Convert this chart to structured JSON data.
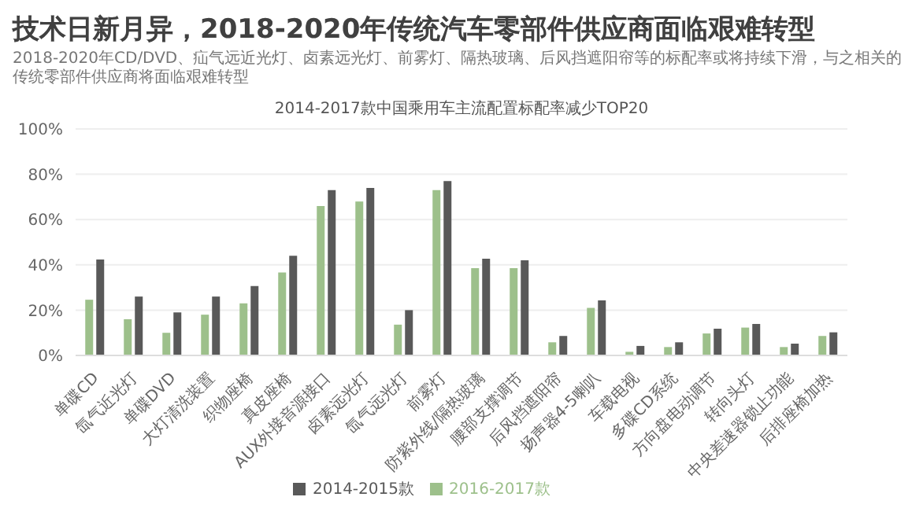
{
  "chart_data": {
    "type": "bar",
    "title": "技术日新月异，2018-2020年传统汽车零部件供应商面临艰难转型",
    "subtitle": "2018-2020年CD/DVD、疝气远近光灯、卤素远光灯、前雾灯、隔热玻璃、后风挡遮阳帘等的标配率或将持续下滑，与之相关的传统零部件供应商将面临艰难转型",
    "annotations": [
      "2014-2017款中国乘用车主流配置标配率减少TOP20"
    ],
    "categories": [
      "单碟CD",
      "氙气近光灯",
      "单碟DVD",
      "大灯清洗装置",
      "织物座椅",
      "真皮座椅",
      "AUX外接音源接口",
      "卤素远光灯",
      "氙气远光灯",
      "前雾灯",
      "防紫外线/隔热玻璃",
      "腰部支撑调节",
      "后风挡遮阳帘",
      "扬声器4-5喇叭",
      "车载电视",
      "多碟CD系统",
      "方向盘电动调节",
      "转向头灯",
      "中央差速器锁止功能",
      "后排座椅加热"
    ],
    "series": [
      {
        "name": "2016-2017款",
        "color": "#9dc08b",
        "values": [
          24.6,
          16,
          10,
          18,
          23,
          36.6,
          66,
          68,
          13.6,
          73,
          38.5,
          38.5,
          5.8,
          21,
          1.6,
          3.7,
          9.7,
          12.3,
          3.7,
          8.6
        ]
      },
      {
        "name": "2014-2015款",
        "color": "#595959",
        "values": [
          42.4,
          26,
          19,
          26,
          30.6,
          44,
          73,
          74,
          20,
          77,
          42.7,
          42,
          8.6,
          24.3,
          4.2,
          5.8,
          11.8,
          13.9,
          5.2,
          10.2
        ]
      }
    ],
    "ylim": [
      0,
      100
    ],
    "yticks": [
      {
        "value": 0,
        "label": "0%"
      },
      {
        "value": 20,
        "label": "20%"
      },
      {
        "value": 40,
        "label": "40%"
      },
      {
        "value": 60,
        "label": "60%"
      },
      {
        "value": 80,
        "label": "80%"
      },
      {
        "value": 100,
        "label": "100%"
      }
    ],
    "grid": "y",
    "legend": "bottom"
  }
}
